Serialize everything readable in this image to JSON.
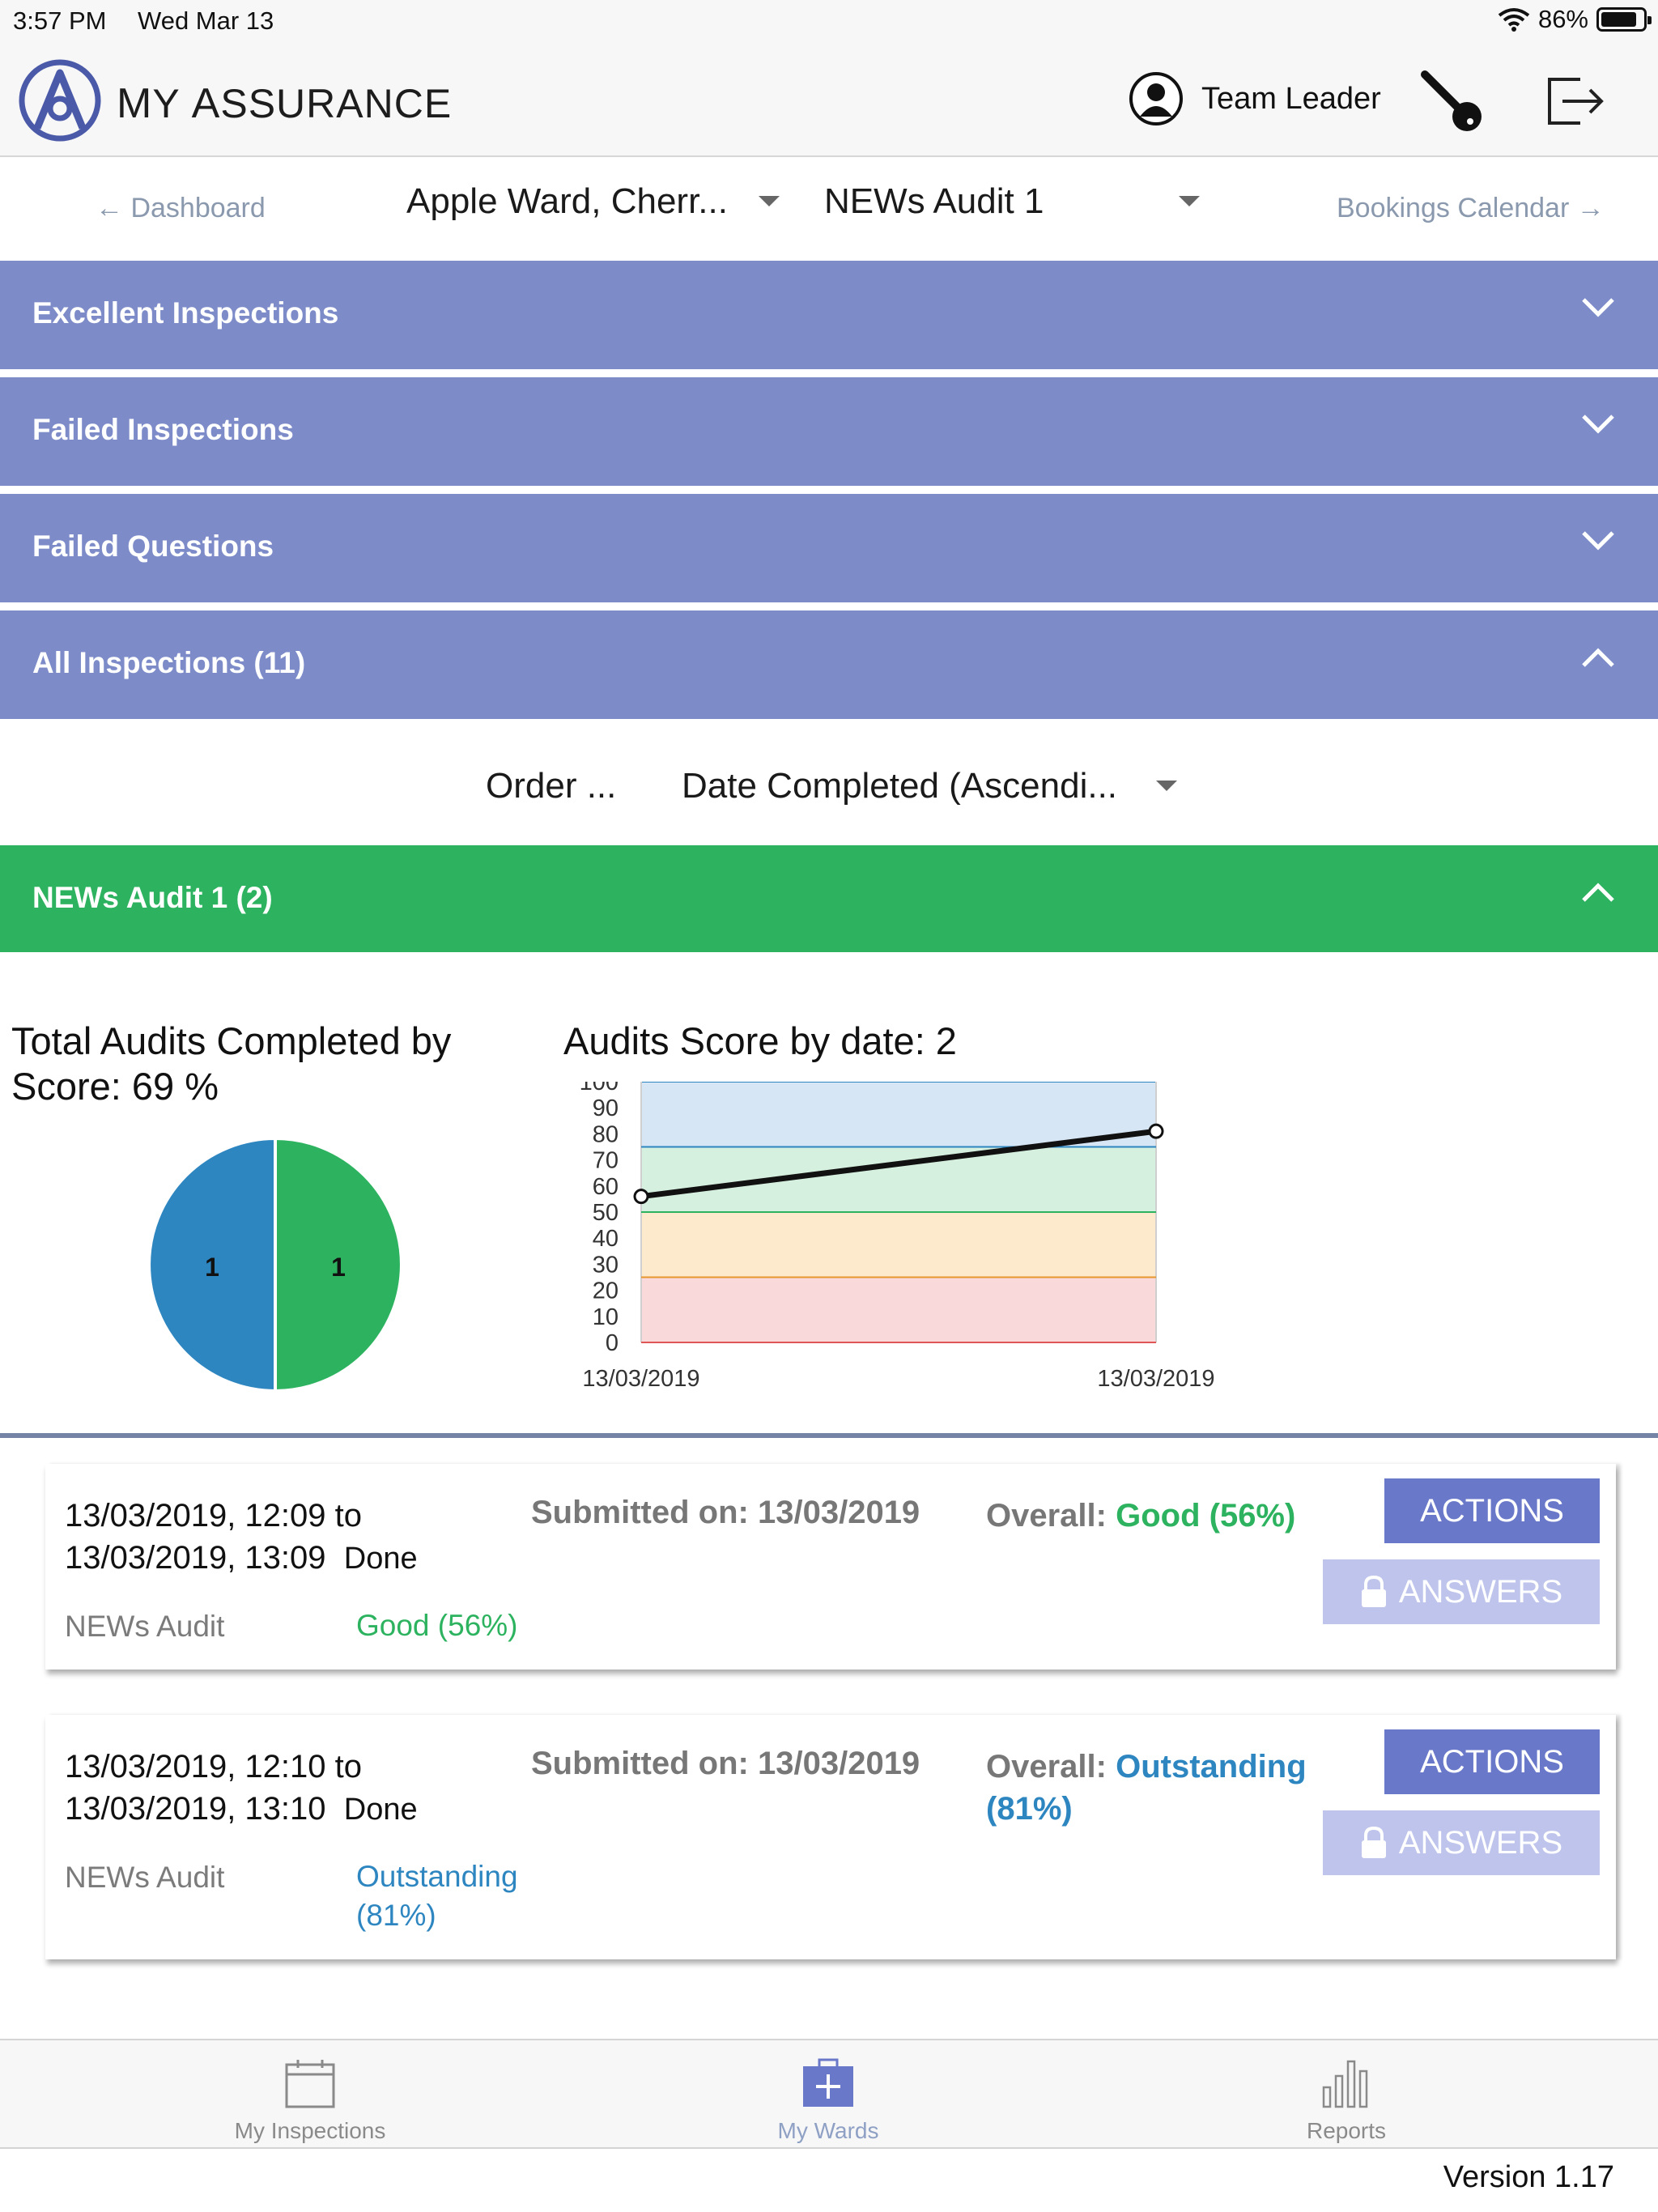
{
  "status": {
    "time": "3:57 PM",
    "date": "Wed Mar 13",
    "battery": "86%",
    "battery_level": 0.86
  },
  "header": {
    "title_cap1": "M",
    "title_rest1": "Y ",
    "title_cap2": "A",
    "title_rest2": "SSURANCE",
    "user_role": "Team Leader"
  },
  "nav": {
    "dashboard": "← Dashboard",
    "ward_select": "Apple Ward, Cherr...",
    "audit_select": "NEWs Audit 1",
    "bookings": "Bookings Calendar →"
  },
  "sections": [
    {
      "label": "Excellent Inspections",
      "expanded": false
    },
    {
      "label": "Failed Inspections",
      "expanded": false
    },
    {
      "label": "Failed Questions",
      "expanded": false
    },
    {
      "label": "All Inspections (11)",
      "expanded": true
    }
  ],
  "order": {
    "label": "Order ...",
    "value": "Date Completed (Ascendi..."
  },
  "group": {
    "label": "NEWs Audit 1 (2)",
    "expanded": true
  },
  "chart_data": [
    {
      "type": "pie",
      "title": "Total Audits Completed by Score: 69 %",
      "slices": [
        {
          "label": "1",
          "value": 1,
          "color": "#2e86c1"
        },
        {
          "label": "1",
          "value": 1,
          "color": "#2db35f"
        }
      ]
    },
    {
      "type": "line",
      "title": "Audits Score by date: 2",
      "x": [
        "13/03/2019",
        "13/03/2019"
      ],
      "values": [
        56,
        81
      ],
      "ylim": [
        0,
        100
      ],
      "yticks": [
        "100",
        "90",
        "80",
        "70",
        "60",
        "50",
        "40",
        "30",
        "20",
        "10",
        "0"
      ],
      "bands": [
        {
          "from": 75,
          "to": 100,
          "color": "#d7e6f5"
        },
        {
          "from": 50,
          "to": 75,
          "color": "#d6f0df"
        },
        {
          "from": 25,
          "to": 50,
          "color": "#fde9cc"
        },
        {
          "from": 0,
          "to": 25,
          "color": "#f9d9d9"
        }
      ],
      "band_lines": [
        {
          "at": 75,
          "color": "#2e86c1"
        },
        {
          "at": 50,
          "color": "#2db35f"
        },
        {
          "at": 25,
          "color": "#e8962e"
        },
        {
          "at": 0,
          "color": "#e05555"
        }
      ],
      "line_color": "#111111"
    }
  ],
  "inspections": [
    {
      "line1": "13/03/2019, 12:09 to",
      "line2": "13/03/2019, 13:09",
      "status": "Done",
      "submitted_label": "Submitted on:",
      "submitted_date": "13/03/2019",
      "overall_label": "Overall:",
      "overall_value": "Good (56%)",
      "type": "NEWs Audit",
      "score": "Good (56%)",
      "actions": "ACTIONS",
      "answers": "ANSWERS"
    },
    {
      "line1": "13/03/2019, 12:10 to",
      "line2": "13/03/2019, 13:10",
      "status": "Done",
      "submitted_label": "Submitted on:",
      "submitted_date": "13/03/2019",
      "overall_label": "Overall:",
      "overall_value": "Outstanding (81%)",
      "type": "NEWs Audit",
      "score": "Outstanding (81%)",
      "actions": "ACTIONS",
      "answers": "ANSWERS"
    }
  ],
  "tabs": [
    {
      "label": "My Inspections",
      "icon": "calendar-icon"
    },
    {
      "label": "My Wards",
      "icon": "medical-kit-icon",
      "active": true
    },
    {
      "label": "Reports",
      "icon": "bar-chart-icon"
    }
  ],
  "version": "Version 1.17"
}
